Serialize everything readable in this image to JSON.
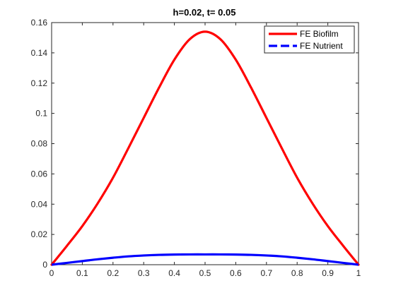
{
  "chart_data": {
    "type": "line",
    "title": "h=0.02, t=  0.05",
    "xlabel": "",
    "ylabel": "",
    "xlim": [
      0,
      1
    ],
    "ylim": [
      0,
      0.16
    ],
    "xticks": [
      0,
      0.1,
      0.2,
      0.3,
      0.4,
      0.5,
      0.6,
      0.7,
      0.8,
      0.9,
      1
    ],
    "xtick_labels": [
      "0",
      "0.1",
      "0.2",
      "0.3",
      "0.4",
      "0.5",
      "0.6",
      "0.7",
      "0.8",
      "0.9",
      "1"
    ],
    "yticks": [
      0,
      0.02,
      0.04,
      0.06,
      0.08,
      0.1,
      0.12,
      0.14,
      0.16
    ],
    "ytick_labels": [
      "0",
      "0.02",
      "0.04",
      "0.06",
      "0.08",
      "0.1",
      "0.12",
      "0.14",
      "0.16"
    ],
    "grid": false,
    "legend": {
      "placement": "top-right"
    },
    "x": [
      0,
      0.05,
      0.1,
      0.15,
      0.2,
      0.25,
      0.3,
      0.35,
      0.4,
      0.45,
      0.5,
      0.55,
      0.6,
      0.65,
      0.7,
      0.75,
      0.8,
      0.85,
      0.9,
      0.95,
      1
    ],
    "series": [
      {
        "name": "FE Biofilm",
        "style": "solid",
        "color": "#ff0000",
        "values": [
          0,
          0.0125,
          0.0255,
          0.0405,
          0.0575,
          0.077,
          0.097,
          0.117,
          0.1355,
          0.149,
          0.154,
          0.149,
          0.1355,
          0.117,
          0.097,
          0.077,
          0.0575,
          0.0405,
          0.0255,
          0.0125,
          0
        ]
      },
      {
        "name": "FE Nutrient",
        "style": "dashed",
        "color": "#0000ff",
        "values": [
          0,
          0.0012,
          0.0024,
          0.0036,
          0.0046,
          0.0055,
          0.0061,
          0.0065,
          0.0067,
          0.0068,
          0.0068,
          0.0068,
          0.0067,
          0.0065,
          0.0061,
          0.0055,
          0.0046,
          0.0036,
          0.0024,
          0.0012,
          0
        ]
      }
    ]
  }
}
